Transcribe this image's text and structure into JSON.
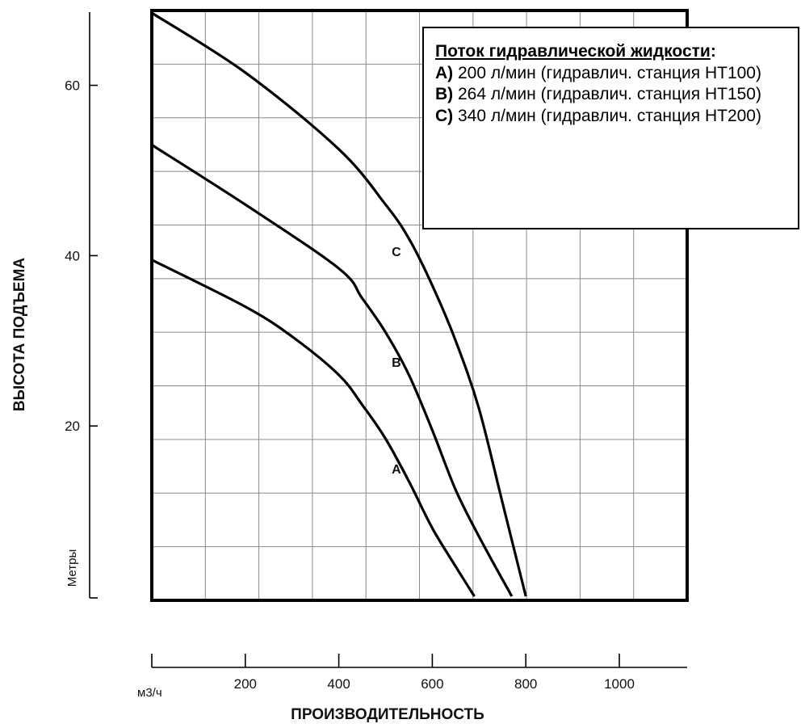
{
  "chart_data": {
    "type": "line",
    "xlabel": "ПРОИЗВОДИТЕЛЬНОСТЬ",
    "ylabel": "ВЫСОТА ПОДЪЕМА",
    "x_unit": "м3/ч",
    "y_unit": "Метры",
    "xlim": [
      0,
      1150
    ],
    "ylim": [
      0,
      69
    ],
    "x_ticks": [
      200,
      400,
      600,
      800,
      1000
    ],
    "y_ticks": [
      20,
      40,
      60
    ],
    "grid": true,
    "series": [
      {
        "name": "A",
        "x": [
          0,
          200,
          300,
          400,
          450,
          500,
          550,
          600,
          650,
          690
        ],
        "y": [
          39.5,
          34,
          30.5,
          26,
          22.5,
          18.5,
          13.5,
          8,
          3.5,
          0
        ]
      },
      {
        "name": "B",
        "x": [
          0,
          200,
          400,
          450,
          500,
          550,
          600,
          650,
          700,
          770
        ],
        "y": [
          53,
          46,
          38.5,
          35,
          31,
          26,
          19.5,
          12.5,
          7,
          0
        ]
      },
      {
        "name": "C",
        "x": [
          0,
          200,
          400,
          500,
          550,
          600,
          650,
          700,
          750,
          800
        ],
        "y": [
          68.5,
          61.5,
          52.5,
          46,
          42,
          36.5,
          30,
          22,
          11,
          0
        ]
      }
    ],
    "curve_labels": [
      {
        "text": "C",
        "x": 520,
        "y": 40.5
      },
      {
        "text": "B",
        "x": 520,
        "y": 27.5
      },
      {
        "text": "A",
        "x": 520,
        "y": 15
      }
    ],
    "legend": {
      "placement": "top-right",
      "title": "Поток гидравлической жидкости",
      "colon": ":",
      "items": [
        {
          "key": "A)",
          "text": " 200 л/мин (гидравлич. станция НТ100)"
        },
        {
          "key": "B)",
          "text": " 264 л/мин (гидравлич. станция НТ150)"
        },
        {
          "key": "C)",
          "text": " 340 л/мин (гидравлич. станция НТ200)"
        }
      ]
    }
  }
}
